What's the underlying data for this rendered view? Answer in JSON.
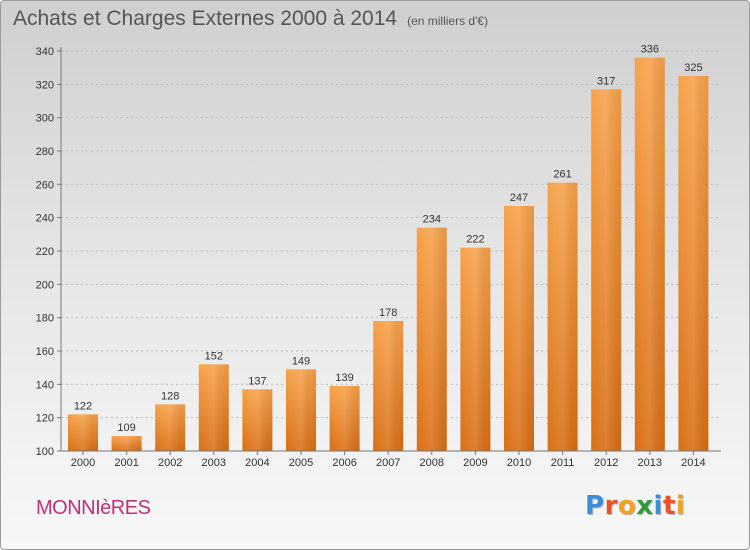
{
  "title": "Achats et Charges Externes 2000 à 2014",
  "subtitle": "(en milliers d'€)",
  "commune": "MONNIèRES",
  "logo": {
    "letters": [
      "P",
      "r",
      "o",
      "x",
      "i",
      "t",
      "i"
    ],
    "colors": [
      "#3a8fd6",
      "#e8512a",
      "#f2a21f",
      "#2f9b3b",
      "#3a8fd6",
      "#e8512a",
      "#f2a21f"
    ]
  },
  "chart_data": {
    "type": "bar",
    "title": "Achats et Charges Externes 2000 à 2014",
    "subtitle": "(en milliers d'€)",
    "categories": [
      "2000",
      "2001",
      "2002",
      "2003",
      "2004",
      "2005",
      "2006",
      "2007",
      "2008",
      "2009",
      "2010",
      "2011",
      "2012",
      "2013",
      "2014"
    ],
    "values": [
      122,
      109,
      128,
      152,
      137,
      149,
      139,
      178,
      234,
      222,
      247,
      261,
      317,
      336,
      325
    ],
    "ylim": [
      100,
      340
    ],
    "yticks": [
      100,
      120,
      140,
      160,
      180,
      200,
      220,
      240,
      260,
      280,
      300,
      320,
      340
    ],
    "grid": true,
    "bar_color": "#f08a2a"
  }
}
